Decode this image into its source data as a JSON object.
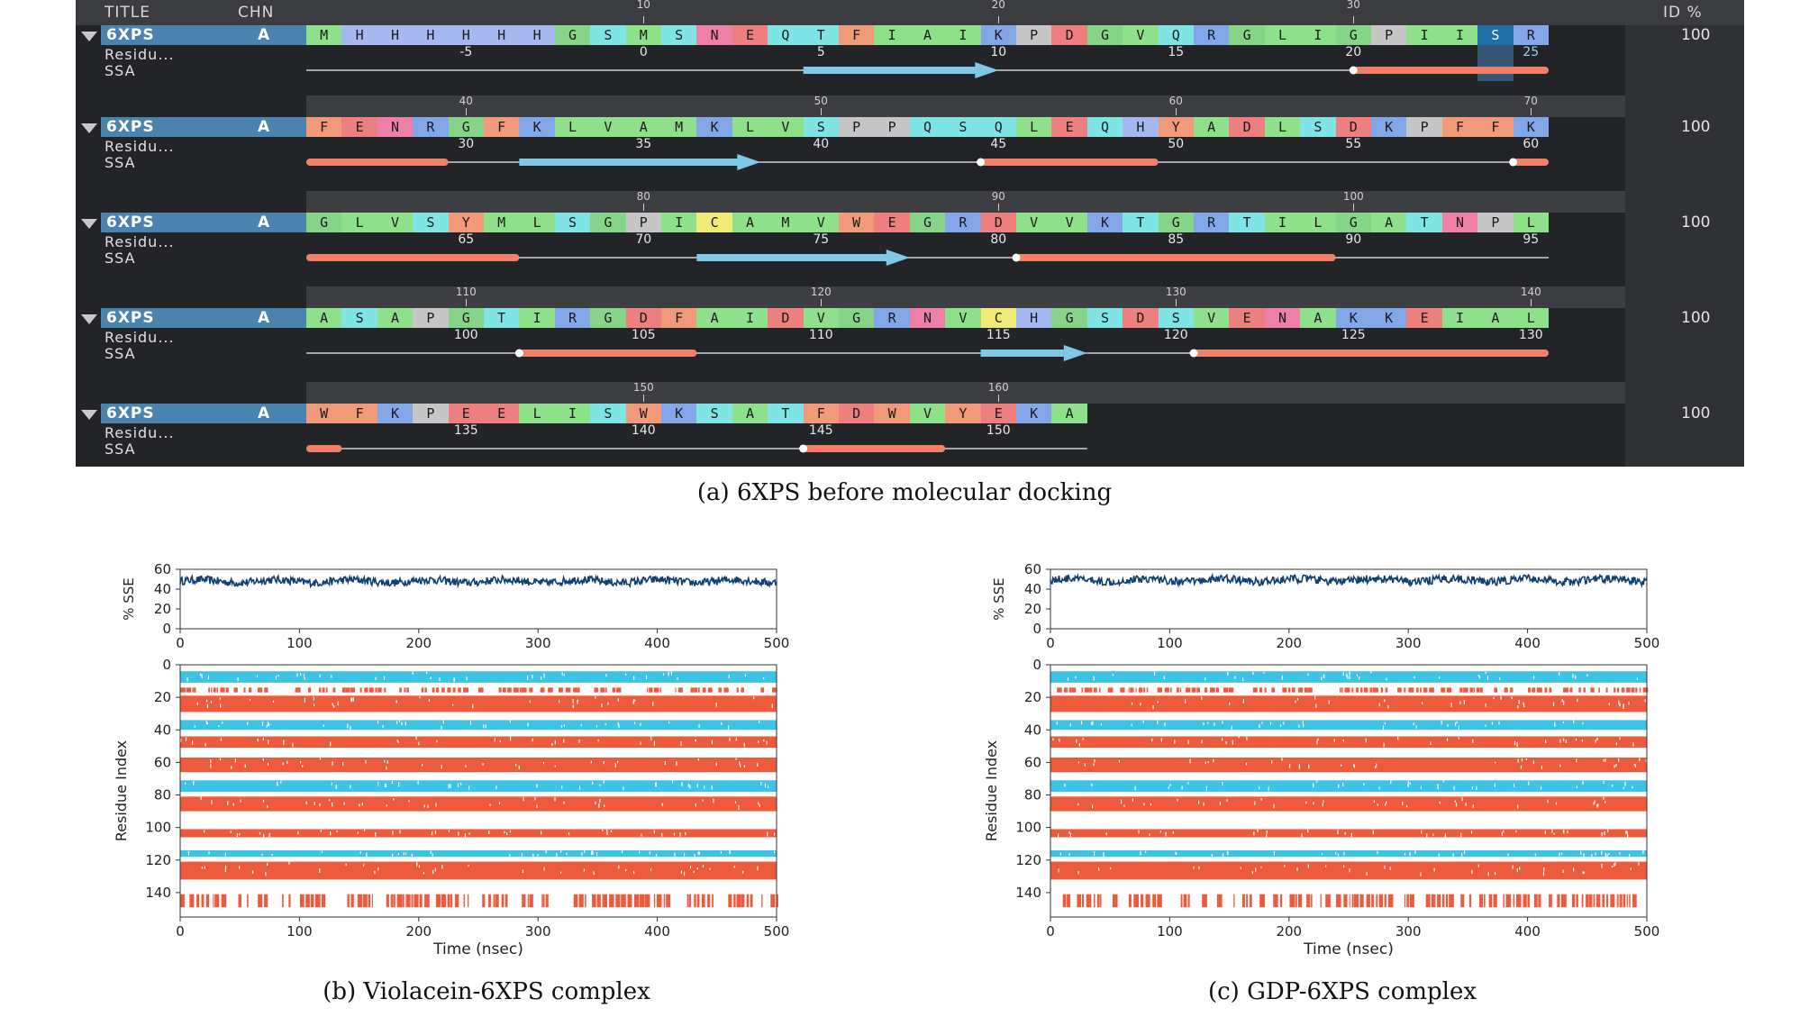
{
  "panel_a": {
    "headers": {
      "title": "TITLE",
      "chain": "CHN",
      "identity": "ID %"
    },
    "row_labels": {
      "residue": "Residu...",
      "ssa": "SSA"
    },
    "chain": "A",
    "structure": "6XPS",
    "identity": "100",
    "highlight": {
      "block": 0,
      "position": 34,
      "label": "25"
    },
    "blocks": [
      {
        "tick_labels": [
          "10",
          "20",
          "30"
        ],
        "tick_positions": [
          10,
          20,
          30
        ],
        "residues": [
          "M",
          "H",
          "H",
          "H",
          "H",
          "H",
          "H",
          "G",
          "S",
          "M",
          "S",
          "N",
          "E",
          "Q",
          "T",
          "F",
          "I",
          "A",
          "I",
          "K",
          "P",
          "D",
          "G",
          "V",
          "Q",
          "R",
          "G",
          "L",
          "I",
          "G",
          "P",
          "I",
          "I",
          "S",
          "R"
        ],
        "residue_numbers": [
          "-5",
          "0",
          "5",
          "10",
          "15",
          "20",
          "25"
        ],
        "residue_number_positions": [
          4,
          9,
          14,
          19,
          24,
          29,
          34
        ],
        "ssa": [
          {
            "type": "strand",
            "start": 14,
            "end": 19.5
          },
          {
            "type": "helix",
            "start": 29.5,
            "end": 35
          }
        ]
      },
      {
        "tick_labels": [
          "40",
          "50",
          "60",
          "70"
        ],
        "tick_positions": [
          40,
          50,
          60,
          70
        ],
        "residues": [
          "F",
          "E",
          "N",
          "R",
          "G",
          "F",
          "K",
          "L",
          "V",
          "A",
          "M",
          "K",
          "L",
          "V",
          "S",
          "P",
          "P",
          "Q",
          "S",
          "Q",
          "L",
          "E",
          "Q",
          "H",
          "Y",
          "A",
          "D",
          "L",
          "S",
          "D",
          "K",
          "P",
          "F",
          "F",
          "K"
        ],
        "residue_numbers": [
          "30",
          "35",
          "40",
          "45",
          "50",
          "55",
          "60"
        ],
        "residue_number_positions": [
          4,
          9,
          14,
          19,
          24,
          29,
          34
        ],
        "ssa": [
          {
            "type": "helix",
            "start": 0,
            "end": 4
          },
          {
            "type": "strand",
            "start": 6,
            "end": 12.8
          },
          {
            "type": "helix",
            "start": 19,
            "end": 24
          },
          {
            "type": "helix",
            "start": 34,
            "end": 35
          }
        ]
      },
      {
        "tick_labels": [
          "80",
          "90",
          "100"
        ],
        "tick_positions": [
          80,
          90,
          100
        ],
        "residues": [
          "G",
          "L",
          "V",
          "S",
          "Y",
          "M",
          "L",
          "S",
          "G",
          "P",
          "I",
          "C",
          "A",
          "M",
          "V",
          "W",
          "E",
          "G",
          "R",
          "D",
          "V",
          "V",
          "K",
          "T",
          "G",
          "R",
          "T",
          "I",
          "L",
          "G",
          "A",
          "T",
          "N",
          "P",
          "L"
        ],
        "residue_numbers": [
          "65",
          "70",
          "75",
          "80",
          "85",
          "90",
          "95"
        ],
        "residue_number_positions": [
          4,
          9,
          14,
          19,
          24,
          29,
          34
        ],
        "ssa": [
          {
            "type": "helix",
            "start": 0,
            "end": 6
          },
          {
            "type": "strand",
            "start": 11,
            "end": 17
          },
          {
            "type": "helix",
            "start": 20,
            "end": 29
          }
        ]
      },
      {
        "tick_labels": [
          "110",
          "120",
          "130",
          "140"
        ],
        "tick_positions": [
          110,
          120,
          130,
          140
        ],
        "residues": [
          "A",
          "S",
          "A",
          "P",
          "G",
          "T",
          "I",
          "R",
          "G",
          "D",
          "F",
          "A",
          "I",
          "D",
          "V",
          "G",
          "R",
          "N",
          "V",
          "C",
          "H",
          "G",
          "S",
          "D",
          "S",
          "V",
          "E",
          "N",
          "A",
          "K",
          "K",
          "E",
          "I",
          "A",
          "L"
        ],
        "residue_numbers": [
          "100",
          "105",
          "110",
          "115",
          "120",
          "125",
          "130"
        ],
        "residue_number_positions": [
          4,
          9,
          14,
          19,
          24,
          29,
          34
        ],
        "ssa": [
          {
            "type": "helix",
            "start": 6,
            "end": 11
          },
          {
            "type": "strand",
            "start": 19,
            "end": 22
          },
          {
            "type": "helix",
            "start": 25,
            "end": 35
          }
        ]
      },
      {
        "tick_labels": [
          "150",
          "160"
        ],
        "tick_positions": [
          150,
          160
        ],
        "residues": [
          "W",
          "F",
          "K",
          "P",
          "E",
          "E",
          "L",
          "I",
          "S",
          "W",
          "K",
          "S",
          "A",
          "T",
          "F",
          "D",
          "W",
          "V",
          "Y",
          "E",
          "K",
          "A"
        ],
        "residue_numbers": [
          "135",
          "140",
          "145",
          "150"
        ],
        "residue_number_positions": [
          4,
          9,
          14,
          19
        ],
        "ssa": [
          {
            "type": "helix",
            "start": 0,
            "end": 1
          },
          {
            "type": "helix",
            "start": 14,
            "end": 18
          }
        ]
      }
    ],
    "residue_colors": {
      "A": "#8fe08a",
      "R": "#82a6e8",
      "N": "#ee7fa6",
      "D": "#ee7f7f",
      "C": "#f1ea77",
      "Q": "#7fe4e4",
      "E": "#ee7f7f",
      "G": "#86d488",
      "H": "#a6b8f0",
      "I": "#8fe08a",
      "L": "#8fe08a",
      "K": "#82a6e8",
      "M": "#8fe08a",
      "F": "#f09a7a",
      "P": "#c6c6c6",
      "S": "#7fe4e4",
      "T": "#7fe4e4",
      "W": "#f09a7a",
      "Y": "#f09a7a",
      "V": "#8fe08a"
    },
    "ssa_colors": {
      "helix": "#f08068",
      "strand": "#7fc8e6",
      "line": "#d0d0d0"
    },
    "caption": "(a) 6XPS before molecular docking"
  },
  "panel_b": {
    "caption": "(b) Violacein-6XPS complex",
    "chart_data": {
      "type": "line",
      "top": {
        "ylabel": "% SSE",
        "yticks": [
          "0",
          "20",
          "40",
          "60"
        ],
        "ylim": [
          0,
          60
        ],
        "xticks": [
          "0",
          "100",
          "200",
          "300",
          "400",
          "500"
        ],
        "xlim": [
          0,
          500
        ],
        "mean": 48,
        "series_color": "#0f3f73"
      },
      "bottom": {
        "type": "heatmap",
        "ylabel": "Residue Index",
        "xlabel": "Time (nsec)",
        "yticks": [
          "0",
          "20",
          "40",
          "60",
          "80",
          "100",
          "120",
          "140"
        ],
        "ylim": [
          0,
          155
        ],
        "xticks": [
          "0",
          "100",
          "200",
          "300",
          "400",
          "500"
        ],
        "xlim": [
          0,
          500
        ],
        "strand_color": "#3cc3e6",
        "helix_color": "#ee5a3c",
        "bands": [
          {
            "type": "strand",
            "from": 4,
            "to": 11
          },
          {
            "type": "helix",
            "from": 14,
            "to": 17,
            "dashed": true
          },
          {
            "type": "helix",
            "from": 19,
            "to": 29
          },
          {
            "type": "strand",
            "from": 34,
            "to": 40
          },
          {
            "type": "helix",
            "from": 44,
            "to": 51
          },
          {
            "type": "helix",
            "from": 57,
            "to": 66
          },
          {
            "type": "strand",
            "from": 71,
            "to": 78
          },
          {
            "type": "helix",
            "from": 81,
            "to": 90
          },
          {
            "type": "helix",
            "from": 101,
            "to": 106
          },
          {
            "type": "strand",
            "from": 114,
            "to": 118
          },
          {
            "type": "helix",
            "from": 121,
            "to": 132
          },
          {
            "type": "helix",
            "from": 141,
            "to": 149,
            "dashed": true
          }
        ]
      }
    }
  },
  "panel_c": {
    "caption": "(c) GDP-6XPS complex",
    "chart_data": {
      "type": "line",
      "top": {
        "ylabel": "% SSE",
        "yticks": [
          "0",
          "20",
          "40",
          "60"
        ],
        "ylim": [
          0,
          60
        ],
        "xticks": [
          "0",
          "100",
          "200",
          "300",
          "400",
          "500"
        ],
        "xlim": [
          0,
          500
        ],
        "mean": 49,
        "series_color": "#0f3f73"
      },
      "bottom": {
        "type": "heatmap",
        "ylabel": "Residue Index",
        "xlabel": "Time (nsec)",
        "yticks": [
          "0",
          "20",
          "40",
          "60",
          "80",
          "100",
          "120",
          "140"
        ],
        "ylim": [
          0,
          155
        ],
        "xticks": [
          "0",
          "100",
          "200",
          "300",
          "400",
          "500"
        ],
        "xlim": [
          0,
          500
        ],
        "strand_color": "#3cc3e6",
        "helix_color": "#ee5a3c",
        "bands": [
          {
            "type": "strand",
            "from": 4,
            "to": 11
          },
          {
            "type": "helix",
            "from": 14,
            "to": 17,
            "dashed": true
          },
          {
            "type": "helix",
            "from": 19,
            "to": 29
          },
          {
            "type": "strand",
            "from": 34,
            "to": 40
          },
          {
            "type": "helix",
            "from": 44,
            "to": 51
          },
          {
            "type": "helix",
            "from": 57,
            "to": 66
          },
          {
            "type": "strand",
            "from": 71,
            "to": 78
          },
          {
            "type": "helix",
            "from": 81,
            "to": 90
          },
          {
            "type": "helix",
            "from": 101,
            "to": 106
          },
          {
            "type": "strand",
            "from": 114,
            "to": 118
          },
          {
            "type": "helix",
            "from": 121,
            "to": 132
          },
          {
            "type": "helix",
            "from": 141,
            "to": 149,
            "dashed": true
          }
        ]
      }
    }
  }
}
